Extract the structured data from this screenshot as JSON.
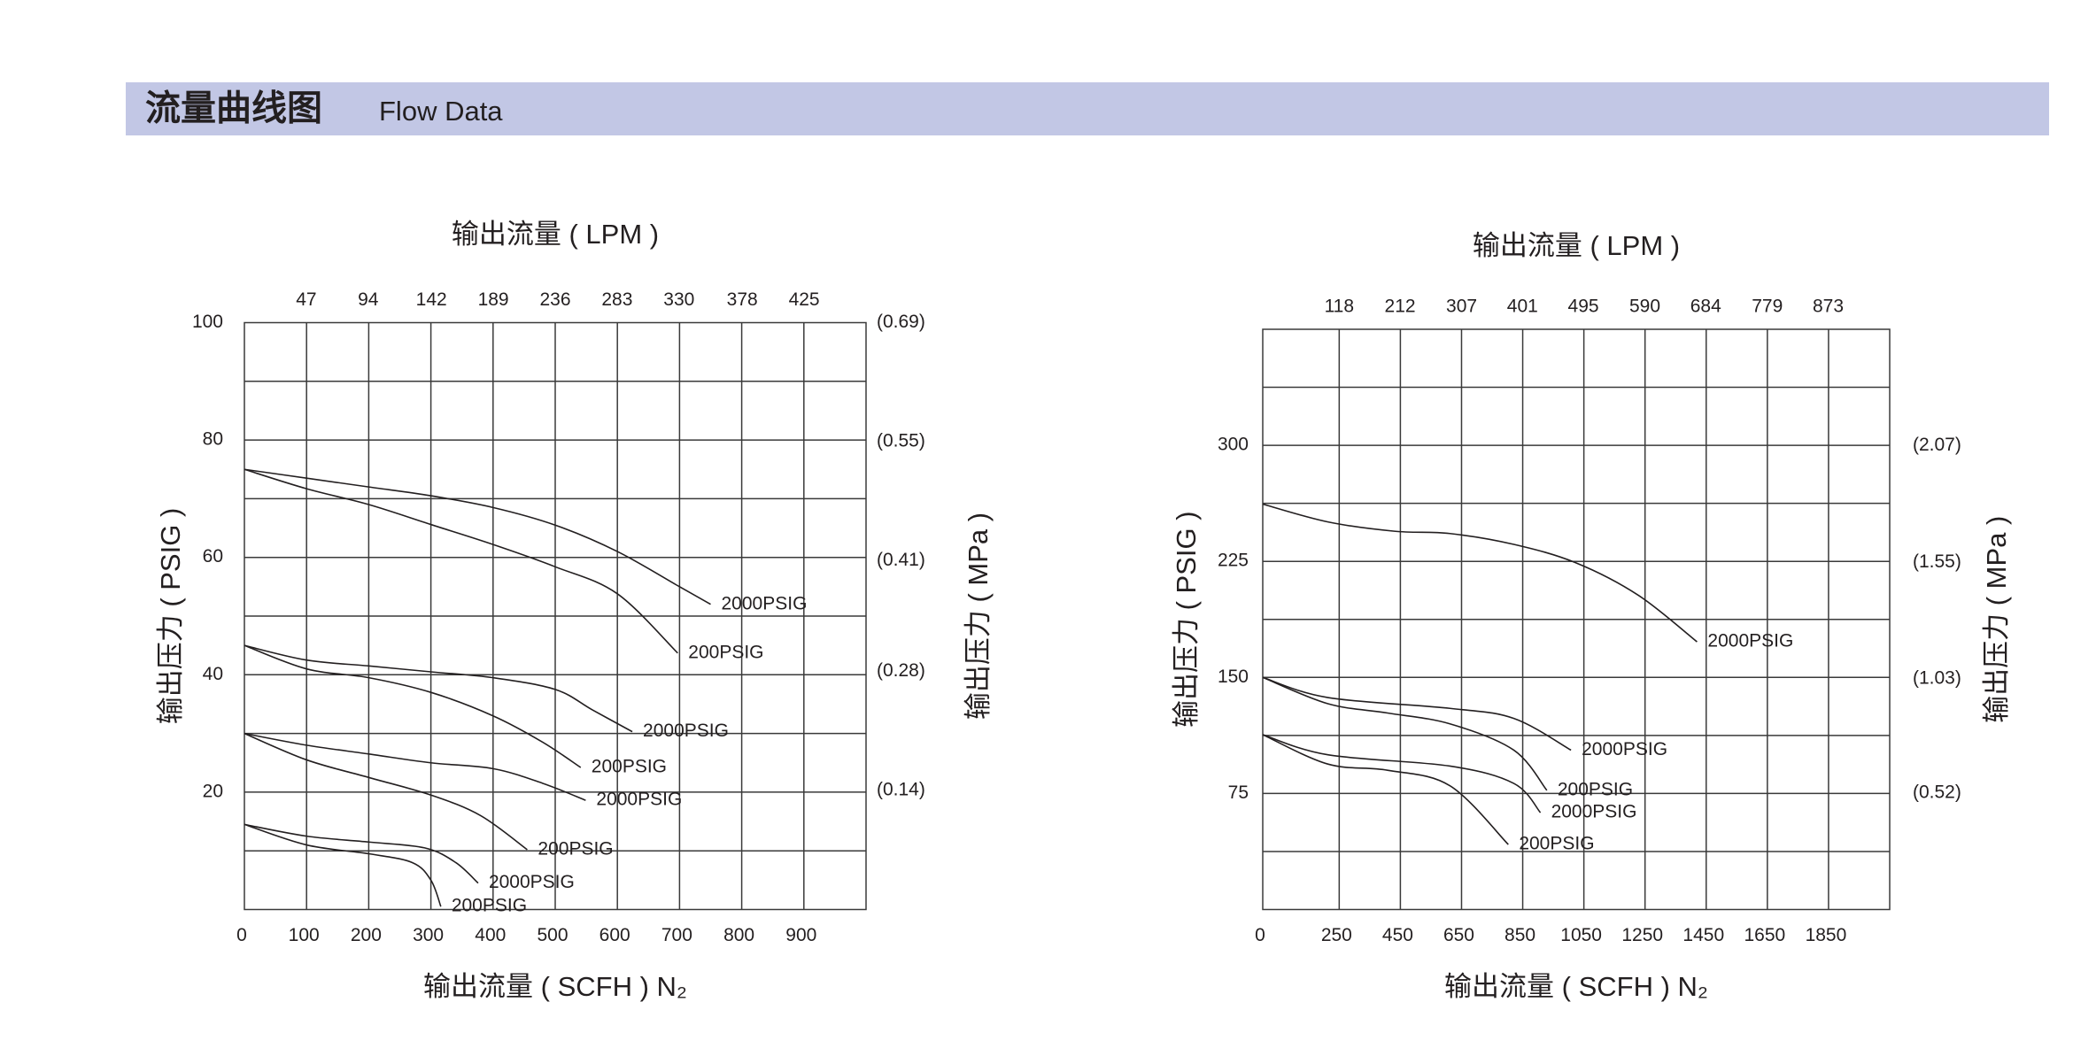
{
  "header": {
    "title": "流量曲线图",
    "subtitle": "Flow Data"
  },
  "chart_data": [
    {
      "type": "line",
      "x2_label": "输出流量 ( LPM )",
      "x_label": "输出流量 ( SCFH ) N₂",
      "y_label": "输出压力 ( PSIG )",
      "y2_label": "输出压力 ( MPa )",
      "xlim": [
        0,
        1000
      ],
      "xticks": [
        0,
        100,
        200,
        300,
        400,
        500,
        600,
        700,
        800,
        900
      ],
      "xgrid": [
        100,
        200,
        300,
        400,
        500,
        600,
        700,
        800,
        900
      ],
      "x2lim": [
        0,
        472
      ],
      "x2ticks": [
        47,
        94,
        142,
        189,
        236,
        283,
        330,
        378,
        425
      ],
      "ylim": [
        0,
        100
      ],
      "yticks": [
        20,
        40,
        60,
        80,
        100
      ],
      "ygrid": [
        10,
        20,
        30,
        40,
        50,
        60,
        70,
        80,
        90
      ],
      "y2lim": [
        0,
        0.69
      ],
      "y2ticks": [
        {
          "value": 0.69,
          "label": "(0.69)"
        },
        {
          "value": 0.55,
          "label": "(0.55)"
        },
        {
          "value": 0.41,
          "label": "(0.41)"
        },
        {
          "value": 0.28,
          "label": "(0.28)"
        },
        {
          "value": 0.14,
          "label": "(0.14)"
        }
      ],
      "series": [
        {
          "name": "2000PSIG",
          "color": "#231f20",
          "x": [
            0,
            100,
            200,
            300,
            400,
            500,
            600,
            700,
            750
          ],
          "values": [
            75,
            73.5,
            72,
            70.5,
            68.5,
            65.5,
            61,
            55,
            52
          ]
        },
        {
          "name": "200PSIG",
          "color": "#231f20",
          "x": [
            0,
            100,
            200,
            300,
            400,
            500,
            600,
            697
          ],
          "values": [
            75,
            71.7,
            69,
            65.6,
            62.2,
            58.4,
            53.8,
            43.7
          ]
        },
        {
          "name": "2000PSIG",
          "color": "#231f20",
          "x": [
            0,
            100,
            200,
            300,
            400,
            500,
            560,
            624
          ],
          "values": [
            45,
            42.5,
            41.5,
            40.5,
            39.5,
            37.5,
            34,
            30.3
          ]
        },
        {
          "name": "200PSIG",
          "color": "#231f20",
          "x": [
            0,
            100,
            200,
            300,
            400,
            480,
            541
          ],
          "values": [
            45,
            41,
            39.5,
            37,
            33,
            28.5,
            24.2
          ]
        },
        {
          "name": "2000PSIG",
          "color": "#231f20",
          "x": [
            0,
            100,
            200,
            300,
            400,
            480,
            549
          ],
          "values": [
            30,
            28,
            26.5,
            25,
            24,
            21.5,
            18.6
          ]
        },
        {
          "name": "200PSIG",
          "color": "#231f20",
          "x": [
            0,
            100,
            200,
            300,
            380,
            455
          ],
          "values": [
            30,
            25.5,
            22.5,
            19.5,
            16,
            10.2
          ]
        },
        {
          "name": "2000PSIG",
          "color": "#231f20",
          "x": [
            0,
            100,
            200,
            290,
            340,
            376
          ],
          "values": [
            14.5,
            12.5,
            11.5,
            10.5,
            8,
            4.5
          ]
        },
        {
          "name": "200PSIG",
          "color": "#231f20",
          "x": [
            0,
            100,
            200,
            270,
            300,
            316
          ],
          "values": [
            14.5,
            11,
            9.5,
            8,
            5,
            0.5
          ]
        }
      ]
    },
    {
      "type": "line",
      "x2_label": "输出流量 ( LPM )",
      "x_label": "输出流量 ( SCFH ) N₂",
      "y_label": "输出压力 ( PSIG )",
      "y2_label": "输出压力 ( MPa )",
      "xlim": [
        0,
        2050
      ],
      "xticks": [
        0,
        250,
        450,
        650,
        850,
        1050,
        1250,
        1450,
        1650,
        1850
      ],
      "xgrid": [
        250,
        450,
        650,
        850,
        1050,
        1250,
        1450,
        1650,
        1850
      ],
      "x2lim": [
        0,
        968
      ],
      "x2ticks": [
        118,
        212,
        307,
        401,
        495,
        590,
        684,
        779,
        873
      ],
      "ylim": [
        0,
        375
      ],
      "yticks": [
        75,
        150,
        225,
        300
      ],
      "ygrid": [
        37.5,
        75,
        112.5,
        150,
        187.5,
        225,
        262.5,
        300,
        337.5
      ],
      "y2lim": [
        0,
        2.59
      ],
      "y2ticks": [
        {
          "value": 2.07,
          "label": "(2.07)"
        },
        {
          "value": 1.55,
          "label": "(1.55)"
        },
        {
          "value": 1.03,
          "label": "(1.03)"
        },
        {
          "value": 0.52,
          "label": "(0.52)"
        }
      ],
      "series": [
        {
          "name": "2000PSIG",
          "color": "#231f20",
          "x": [
            0,
            213,
            430,
            612,
            821,
            1025,
            1229,
            1420
          ],
          "values": [
            262,
            250.5,
            244.5,
            243,
            236,
            224,
            203,
            173
          ]
        },
        {
          "name": "2000PSIG",
          "color": "#231f20",
          "x": [
            0,
            213,
            612,
            821,
            1008
          ],
          "values": [
            150,
            137,
            130,
            123.5,
            103
          ]
        },
        {
          "name": "200PSIG",
          "color": "#231f20",
          "x": [
            0,
            213,
            408,
            612,
            821,
            929
          ],
          "values": [
            150,
            133,
            127,
            120,
            103,
            77
          ]
        },
        {
          "name": "2000PSIG",
          "color": "#231f20",
          "x": [
            0,
            213,
            612,
            821,
            908
          ],
          "values": [
            113,
            100,
            92.7,
            81.5,
            62.6
          ]
        },
        {
          "name": "200PSIG",
          "color": "#231f20",
          "x": [
            0,
            213,
            408,
            612,
            803
          ],
          "values": [
            113,
            94,
            90,
            80,
            42
          ]
        }
      ]
    }
  ]
}
